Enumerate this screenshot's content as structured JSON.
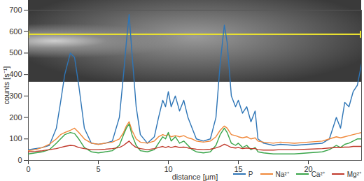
{
  "chart_data": {
    "type": "line",
    "x_label": "distance [µm]",
    "y_label": "counts [s⁻¹]",
    "x": [
      0,
      0.5,
      1,
      1.5,
      2,
      2.3,
      2.6,
      3,
      3.3,
      3.6,
      4,
      4.5,
      5,
      5.5,
      6,
      6.5,
      6.8,
      7,
      7.2,
      7.4,
      7.7,
      8,
      8.5,
      9,
      9.3,
      9.6,
      9.8,
      10,
      10.2,
      10.5,
      10.8,
      11.1,
      11.4,
      11.7,
      12,
      12.5,
      13,
      13.4,
      13.7,
      14,
      14.2,
      14.5,
      14.8,
      15,
      15.3,
      15.6,
      15.9,
      16.2,
      16.4,
      16.8,
      17.5,
      18,
      19,
      20,
      21,
      21.5,
      22,
      22.3,
      22.6,
      22.9,
      23.2,
      23.5,
      23.8
    ],
    "series": [
      {
        "name": "P",
        "color": "#2e75b6",
        "values": [
          50,
          55,
          60,
          70,
          150,
          270,
          400,
          500,
          480,
          350,
          150,
          80,
          75,
          80,
          90,
          200,
          400,
          550,
          680,
          500,
          250,
          120,
          80,
          110,
          200,
          280,
          250,
          320,
          250,
          300,
          230,
          280,
          200,
          150,
          100,
          90,
          100,
          200,
          450,
          630,
          550,
          300,
          250,
          280,
          220,
          250,
          180,
          230,
          100,
          80,
          70,
          75,
          70,
          75,
          80,
          100,
          200,
          150,
          270,
          250,
          320,
          350,
          450
        ]
      },
      {
        "name": "Na²⁺",
        "color": "#f0883a",
        "values": [
          45,
          50,
          60,
          75,
          100,
          120,
          130,
          140,
          150,
          130,
          100,
          80,
          75,
          80,
          85,
          100,
          130,
          160,
          180,
          140,
          100,
          85,
          80,
          90,
          110,
          120,
          115,
          120,
          110,
          115,
          110,
          115,
          105,
          100,
          90,
          85,
          90,
          110,
          140,
          160,
          150,
          120,
          115,
          110,
          105,
          110,
          100,
          105,
          90,
          85,
          80,
          85,
          80,
          85,
          90,
          100,
          110,
          105,
          110,
          115,
          120,
          125,
          130
        ]
      },
      {
        "name": "Ca²⁺",
        "color": "#3aa54a",
        "values": [
          30,
          35,
          40,
          50,
          80,
          100,
          120,
          130,
          125,
          100,
          60,
          40,
          35,
          40,
          45,
          70,
          120,
          150,
          170,
          120,
          70,
          45,
          40,
          50,
          80,
          110,
          100,
          130,
          90,
          110,
          80,
          90,
          70,
          50,
          40,
          35,
          40,
          70,
          120,
          150,
          130,
          80,
          70,
          80,
          60,
          70,
          50,
          60,
          40,
          35,
          30,
          30,
          30,
          35,
          40,
          50,
          70,
          60,
          75,
          80,
          90,
          100,
          100
        ]
      },
      {
        "name": "Mg²⁺",
        "color": "#c0392b",
        "values": [
          40,
          42,
          45,
          50,
          55,
          60,
          65,
          70,
          68,
          60,
          55,
          50,
          50,
          52,
          55,
          60,
          70,
          80,
          90,
          75,
          60,
          55,
          50,
          55,
          60,
          65,
          60,
          65,
          60,
          65,
          60,
          62,
          58,
          55,
          52,
          50,
          52,
          58,
          65,
          75,
          70,
          60,
          58,
          60,
          55,
          58,
          55,
          55,
          50,
          48,
          48,
          50,
          50,
          52,
          55,
          58,
          60,
          60,
          62,
          62,
          65,
          65,
          65
        ]
      }
    ],
    "xlim": [
      0,
      23.8
    ],
    "xticks": [
      0,
      5,
      10,
      15,
      20
    ],
    "ylim": [
      0,
      700
    ],
    "yticks": [
      0,
      100,
      200,
      300,
      400,
      500,
      600,
      700
    ],
    "grid": false,
    "legend": "bottom-right"
  }
}
